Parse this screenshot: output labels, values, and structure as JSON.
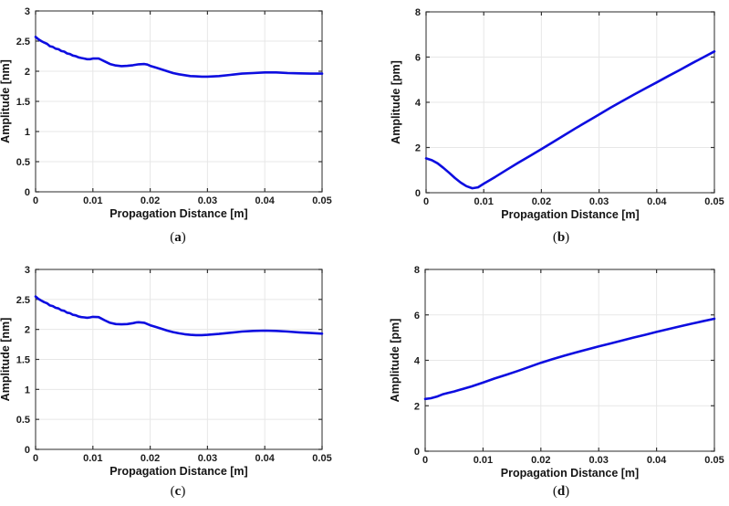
{
  "figure": {
    "background": "#ffffff",
    "line_color": "#0d0de0",
    "grid_color": "#e7e7e7",
    "axis_color": "#4d4d4d",
    "tick_color": "#333333",
    "text_color": "#1c1c1c",
    "line_width": 2.6
  },
  "chart_data": [
    {
      "id": "a",
      "type": "line",
      "caption": {
        "open": "(",
        "letter": "a",
        "close": ")"
      },
      "xlabel": "Propagation Distance [m]",
      "ylabel": "Amplitude [nm]",
      "xlim": [
        0,
        0.05
      ],
      "ylim": [
        0,
        3
      ],
      "xticks": [
        0,
        0.01,
        0.02,
        0.03,
        0.04,
        0.05
      ],
      "xtick_labels": [
        "0",
        "0.01",
        "0.02",
        "0.03",
        "0.04",
        "0.05"
      ],
      "yticks": [
        0,
        0.5,
        1,
        1.5,
        2,
        2.5,
        3
      ],
      "ytick_labels": [
        "0",
        "0.5",
        "1",
        "1.5",
        "2",
        "2.5",
        "3"
      ],
      "grid": true,
      "legend": null,
      "points": [
        [
          0,
          2.57
        ],
        [
          0.0005,
          2.53
        ],
        [
          0.001,
          2.5
        ],
        [
          0.0015,
          2.475
        ],
        [
          0.002,
          2.455
        ],
        [
          0.0025,
          2.415
        ],
        [
          0.003,
          2.405
        ],
        [
          0.0035,
          2.375
        ],
        [
          0.004,
          2.365
        ],
        [
          0.0045,
          2.335
        ],
        [
          0.005,
          2.325
        ],
        [
          0.0055,
          2.295
        ],
        [
          0.006,
          2.285
        ],
        [
          0.0065,
          2.26
        ],
        [
          0.007,
          2.25
        ],
        [
          0.0075,
          2.23
        ],
        [
          0.008,
          2.22
        ],
        [
          0.0085,
          2.21
        ],
        [
          0.009,
          2.2
        ],
        [
          0.0095,
          2.2
        ],
        [
          0.01,
          2.21
        ],
        [
          0.011,
          2.21
        ],
        [
          0.0115,
          2.19
        ],
        [
          0.012,
          2.165
        ],
        [
          0.013,
          2.12
        ],
        [
          0.014,
          2.095
        ],
        [
          0.015,
          2.085
        ],
        [
          0.016,
          2.09
        ],
        [
          0.017,
          2.1
        ],
        [
          0.018,
          2.115
        ],
        [
          0.019,
          2.12
        ],
        [
          0.0195,
          2.11
        ],
        [
          0.02,
          2.09
        ],
        [
          0.021,
          2.06
        ],
        [
          0.022,
          2.03
        ],
        [
          0.023,
          2.0
        ],
        [
          0.024,
          1.97
        ],
        [
          0.025,
          1.95
        ],
        [
          0.026,
          1.935
        ],
        [
          0.027,
          1.92
        ],
        [
          0.028,
          1.915
        ],
        [
          0.029,
          1.91
        ],
        [
          0.03,
          1.91
        ],
        [
          0.032,
          1.92
        ],
        [
          0.034,
          1.94
        ],
        [
          0.036,
          1.96
        ],
        [
          0.038,
          1.97
        ],
        [
          0.04,
          1.98
        ],
        [
          0.042,
          1.98
        ],
        [
          0.044,
          1.97
        ],
        [
          0.046,
          1.965
        ],
        [
          0.048,
          1.96
        ],
        [
          0.05,
          1.96
        ]
      ]
    },
    {
      "id": "b",
      "type": "line",
      "caption": {
        "open": "(",
        "letter": "b",
        "close": ")"
      },
      "xlabel": "Propagation Distance [m]",
      "ylabel": "Amplitude [pm]",
      "xlim": [
        0,
        0.05
      ],
      "ylim": [
        0,
        8
      ],
      "xticks": [
        0,
        0.01,
        0.02,
        0.03,
        0.04,
        0.05
      ],
      "xtick_labels": [
        "0",
        "0.01",
        "0.02",
        "0.03",
        "0.04",
        "0.05"
      ],
      "yticks": [
        0,
        2,
        4,
        6,
        8
      ],
      "ytick_labels": [
        "0",
        "2",
        "4",
        "6",
        "8"
      ],
      "grid": true,
      "legend": null,
      "points": [
        [
          0,
          1.52
        ],
        [
          0.001,
          1.44
        ],
        [
          0.002,
          1.3
        ],
        [
          0.003,
          1.1
        ],
        [
          0.004,
          0.88
        ],
        [
          0.005,
          0.65
        ],
        [
          0.006,
          0.45
        ],
        [
          0.007,
          0.29
        ],
        [
          0.008,
          0.2
        ],
        [
          0.009,
          0.24
        ],
        [
          0.01,
          0.4
        ],
        [
          0.012,
          0.7
        ],
        [
          0.014,
          1.02
        ],
        [
          0.016,
          1.33
        ],
        [
          0.018,
          1.63
        ],
        [
          0.02,
          1.93
        ],
        [
          0.022,
          2.24
        ],
        [
          0.024,
          2.55
        ],
        [
          0.026,
          2.86
        ],
        [
          0.028,
          3.16
        ],
        [
          0.03,
          3.46
        ],
        [
          0.032,
          3.76
        ],
        [
          0.034,
          4.05
        ],
        [
          0.036,
          4.33
        ],
        [
          0.038,
          4.61
        ],
        [
          0.04,
          4.88
        ],
        [
          0.042,
          5.16
        ],
        [
          0.044,
          5.43
        ],
        [
          0.046,
          5.71
        ],
        [
          0.048,
          5.98
        ],
        [
          0.05,
          6.25
        ]
      ]
    },
    {
      "id": "c",
      "type": "line",
      "caption": {
        "open": "(",
        "letter": "c",
        "close": ")"
      },
      "xlabel": "Propagation Distance [m]",
      "ylabel": "Amplitude [nm]",
      "xlim": [
        0,
        0.05
      ],
      "ylim": [
        0,
        3
      ],
      "xticks": [
        0,
        0.01,
        0.02,
        0.03,
        0.04,
        0.05
      ],
      "xtick_labels": [
        "0",
        "0.01",
        "0.02",
        "0.03",
        "0.04",
        "0.05"
      ],
      "yticks": [
        0,
        0.5,
        1,
        1.5,
        2,
        2.5,
        3
      ],
      "ytick_labels": [
        "0",
        "0.5",
        "1",
        "1.5",
        "2",
        "2.5",
        "3"
      ],
      "grid": true,
      "legend": null,
      "points": [
        [
          0,
          2.55
        ],
        [
          0.0005,
          2.51
        ],
        [
          0.001,
          2.48
        ],
        [
          0.0015,
          2.455
        ],
        [
          0.002,
          2.435
        ],
        [
          0.0025,
          2.4
        ],
        [
          0.003,
          2.39
        ],
        [
          0.0035,
          2.36
        ],
        [
          0.004,
          2.35
        ],
        [
          0.0045,
          2.32
        ],
        [
          0.005,
          2.31
        ],
        [
          0.0055,
          2.28
        ],
        [
          0.006,
          2.27
        ],
        [
          0.0065,
          2.245
        ],
        [
          0.007,
          2.235
        ],
        [
          0.0075,
          2.215
        ],
        [
          0.008,
          2.205
        ],
        [
          0.0085,
          2.2
        ],
        [
          0.009,
          2.195
        ],
        [
          0.0095,
          2.2
        ],
        [
          0.01,
          2.21
        ],
        [
          0.011,
          2.205
        ],
        [
          0.0115,
          2.18
        ],
        [
          0.012,
          2.155
        ],
        [
          0.013,
          2.11
        ],
        [
          0.014,
          2.09
        ],
        [
          0.015,
          2.085
        ],
        [
          0.016,
          2.09
        ],
        [
          0.017,
          2.105
        ],
        [
          0.0175,
          2.115
        ],
        [
          0.018,
          2.12
        ],
        [
          0.019,
          2.11
        ],
        [
          0.02,
          2.07
        ],
        [
          0.021,
          2.04
        ],
        [
          0.022,
          2.01
        ],
        [
          0.023,
          1.98
        ],
        [
          0.024,
          1.955
        ],
        [
          0.025,
          1.935
        ],
        [
          0.026,
          1.92
        ],
        [
          0.027,
          1.91
        ],
        [
          0.028,
          1.905
        ],
        [
          0.029,
          1.905
        ],
        [
          0.03,
          1.91
        ],
        [
          0.032,
          1.925
        ],
        [
          0.034,
          1.945
        ],
        [
          0.036,
          1.965
        ],
        [
          0.038,
          1.975
        ],
        [
          0.04,
          1.98
        ],
        [
          0.042,
          1.975
        ],
        [
          0.044,
          1.965
        ],
        [
          0.046,
          1.95
        ],
        [
          0.048,
          1.94
        ],
        [
          0.05,
          1.93
        ]
      ]
    },
    {
      "id": "d",
      "type": "line",
      "caption": {
        "open": "(",
        "letter": "d",
        "close": ")"
      },
      "xlabel": "Propagation Distance [m]",
      "ylabel": "Amplitude [pm]",
      "xlim": [
        0,
        0.05
      ],
      "ylim": [
        0,
        8
      ],
      "xticks": [
        0,
        0.01,
        0.02,
        0.03,
        0.04,
        0.05
      ],
      "xtick_labels": [
        "0",
        "0.01",
        "0.02",
        "0.03",
        "0.04",
        "0.05"
      ],
      "yticks": [
        0,
        2,
        4,
        6,
        8
      ],
      "ytick_labels": [
        "0",
        "2",
        "4",
        "6",
        "8"
      ],
      "grid": true,
      "legend": null,
      "points": [
        [
          0,
          2.3
        ],
        [
          0.001,
          2.33
        ],
        [
          0.002,
          2.4
        ],
        [
          0.003,
          2.5
        ],
        [
          0.004,
          2.57
        ],
        [
          0.005,
          2.63
        ],
        [
          0.006,
          2.7
        ],
        [
          0.008,
          2.85
        ],
        [
          0.01,
          3.02
        ],
        [
          0.012,
          3.2
        ],
        [
          0.014,
          3.36
        ],
        [
          0.016,
          3.53
        ],
        [
          0.018,
          3.71
        ],
        [
          0.02,
          3.89
        ],
        [
          0.022,
          4.05
        ],
        [
          0.024,
          4.2
        ],
        [
          0.026,
          4.34
        ],
        [
          0.028,
          4.48
        ],
        [
          0.03,
          4.61
        ],
        [
          0.032,
          4.74
        ],
        [
          0.034,
          4.87
        ],
        [
          0.036,
          5.0
        ],
        [
          0.038,
          5.12
        ],
        [
          0.04,
          5.25
        ],
        [
          0.042,
          5.37
        ],
        [
          0.044,
          5.49
        ],
        [
          0.046,
          5.61
        ],
        [
          0.048,
          5.72
        ],
        [
          0.05,
          5.83
        ]
      ]
    }
  ]
}
